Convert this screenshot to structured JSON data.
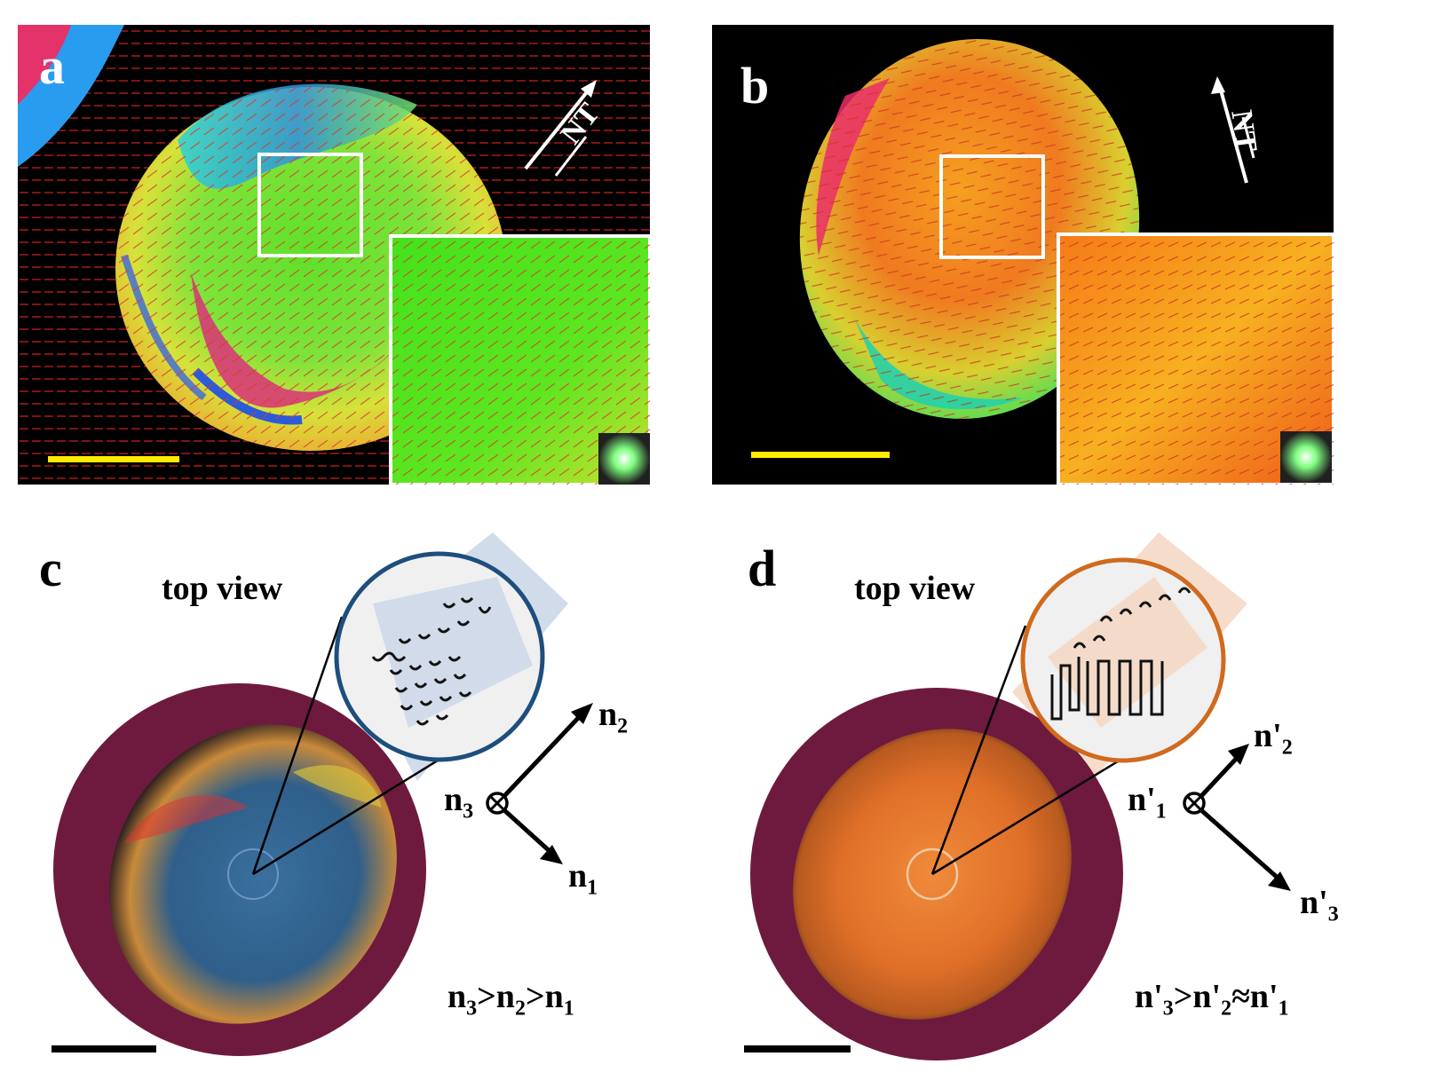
{
  "figure": {
    "panels": [
      {
        "id": "a",
        "label": "a",
        "direction_label": "NT",
        "colors": {
          "scale_bar": "#ffeb00",
          "inset_base": "#49e51c"
        }
      },
      {
        "id": "b",
        "label": "b",
        "direction_label": "NT",
        "colors": {
          "scale_bar": "#ffeb00",
          "inset_base": "#f58a1a"
        }
      },
      {
        "id": "c",
        "label": "c",
        "view_label": "top view",
        "axes": {
          "center": {
            "base": "n",
            "sub": "3"
          },
          "up": {
            "base": "n",
            "sub": "2"
          },
          "down": {
            "base": "n",
            "sub": "1"
          }
        },
        "relation": [
          {
            "t": "n"
          },
          {
            "s": "3"
          },
          {
            "t": ">n"
          },
          {
            "s": "2"
          },
          {
            "t": ">n"
          },
          {
            "s": "1"
          }
        ],
        "colors": {
          "ring": "#1d4e7e",
          "droplet": "#3a6f9e",
          "band": "#c9d6e8"
        }
      },
      {
        "id": "d",
        "label": "d",
        "view_label": "top view",
        "axes": {
          "center": {
            "base": "n'",
            "sub": "1"
          },
          "up": {
            "base": "n'",
            "sub": "2"
          },
          "down": {
            "base": "n'",
            "sub": "3"
          }
        },
        "relation": [
          {
            "t": "n'"
          },
          {
            "s": "3"
          },
          {
            "t": ">n'"
          },
          {
            "s": "2"
          },
          {
            "t": "≈n'"
          },
          {
            "s": "1"
          }
        ],
        "colors": {
          "ring": "#d06a1e",
          "droplet": "#e0742a",
          "band": "#f5d7c2"
        }
      }
    ],
    "colors": {
      "background_disk": "#6e1a3e",
      "label_light": "#ffffff",
      "label_dark": "#000000"
    }
  }
}
